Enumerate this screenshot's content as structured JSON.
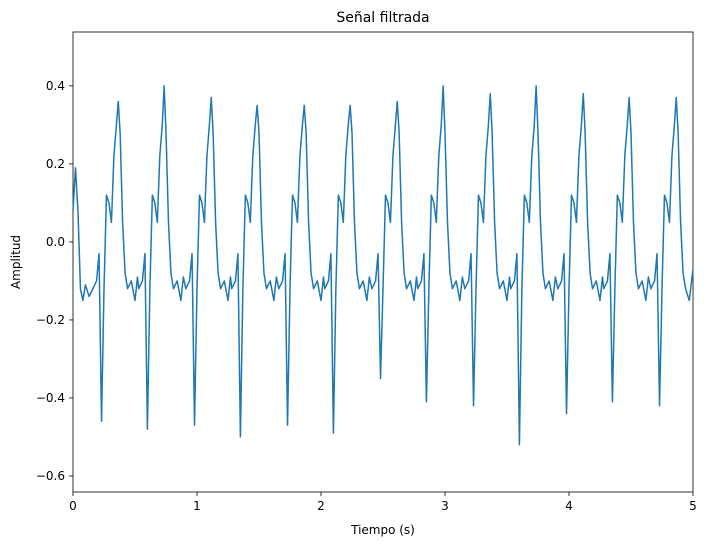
{
  "chart_data": {
    "type": "line",
    "title": "Señal filtrada",
    "x_label": "Tiempo (s)",
    "y_label": "Amplitud",
    "xlim": [
      0,
      5
    ],
    "ylim": [
      -0.641,
      0.538
    ],
    "xticks": [
      0,
      1,
      2,
      3,
      4,
      5
    ],
    "yticks": [
      {
        "value": -0.6,
        "label": "−0.6"
      },
      {
        "value": -0.4,
        "label": "−0.4"
      },
      {
        "value": -0.2,
        "label": "−0.2"
      },
      {
        "value": 0.0,
        "label": "0.0"
      },
      {
        "value": 0.2,
        "label": "0.2"
      },
      {
        "value": 0.4,
        "label": "0.4"
      }
    ],
    "x": [
      0,
      0.02,
      0.04,
      0.06,
      0.08,
      0.1,
      0.13,
      0.16,
      0.19,
      0.21,
      0.23,
      0.25,
      0.27,
      0.29,
      0.31,
      0.33,
      0.35,
      0.365,
      0.38,
      0.4,
      0.42,
      0.44,
      0.47,
      0.5,
      0.52,
      0.53,
      0.56,
      0.58,
      0.6,
      0.62,
      0.64,
      0.66,
      0.68,
      0.7,
      0.72,
      0.735,
      0.75,
      0.77,
      0.79,
      0.81,
      0.84,
      0.87,
      0.89,
      0.91,
      0.94,
      0.96,
      0.98,
      1.0,
      1.02,
      1.04,
      1.06,
      1.08,
      1.1,
      1.115,
      1.13,
      1.15,
      1.17,
      1.19,
      1.22,
      1.25,
      1.27,
      1.28,
      1.31,
      1.33,
      1.35,
      1.37,
      1.39,
      1.41,
      1.43,
      1.45,
      1.47,
      1.485,
      1.5,
      1.52,
      1.54,
      1.56,
      1.59,
      1.62,
      1.64,
      1.66,
      1.69,
      1.71,
      1.73,
      1.75,
      1.77,
      1.79,
      1.81,
      1.83,
      1.85,
      1.865,
      1.88,
      1.9,
      1.92,
      1.94,
      1.97,
      2.0,
      2.02,
      2.03,
      2.06,
      2.08,
      2.1,
      2.12,
      2.14,
      2.16,
      2.18,
      2.2,
      2.22,
      2.235,
      2.25,
      2.27,
      2.29,
      2.31,
      2.34,
      2.37,
      2.39,
      2.41,
      2.44,
      2.46,
      2.48,
      2.5,
      2.52,
      2.54,
      2.56,
      2.58,
      2.6,
      2.615,
      2.63,
      2.65,
      2.67,
      2.69,
      2.72,
      2.75,
      2.77,
      2.78,
      2.81,
      2.83,
      2.85,
      2.87,
      2.89,
      2.91,
      2.93,
      2.95,
      2.97,
      2.985,
      3.0,
      3.02,
      3.04,
      3.06,
      3.09,
      3.12,
      3.14,
      3.16,
      3.19,
      3.21,
      3.23,
      3.25,
      3.27,
      3.29,
      3.31,
      3.33,
      3.35,
      3.365,
      3.38,
      3.4,
      3.42,
      3.44,
      3.47,
      3.5,
      3.52,
      3.53,
      3.56,
      3.58,
      3.6,
      3.62,
      3.64,
      3.66,
      3.68,
      3.7,
      3.72,
      3.735,
      3.75,
      3.77,
      3.79,
      3.81,
      3.84,
      3.87,
      3.89,
      3.91,
      3.94,
      3.96,
      3.98,
      4.0,
      4.02,
      4.04,
      4.06,
      4.08,
      4.1,
      4.115,
      4.13,
      4.15,
      4.17,
      4.19,
      4.22,
      4.25,
      4.27,
      4.28,
      4.31,
      4.33,
      4.35,
      4.37,
      4.39,
      4.41,
      4.43,
      4.45,
      4.47,
      4.485,
      4.5,
      4.52,
      4.54,
      4.56,
      4.59,
      4.62,
      4.64,
      4.66,
      4.69,
      4.71,
      4.73,
      4.75,
      4.77,
      4.79,
      4.81,
      4.83,
      4.85,
      4.865,
      4.88,
      4.9,
      4.92,
      4.94,
      4.97,
      5.0
    ],
    "series": [
      {
        "color": "#1f77b4",
        "values": [
          0.08,
          0.19,
          0.08,
          -0.12,
          -0.15,
          -0.11,
          -0.14,
          -0.12,
          -0.1,
          -0.03,
          -0.46,
          -0.12,
          0.12,
          0.1,
          0.05,
          0.22,
          0.3,
          0.36,
          0.28,
          0.05,
          -0.08,
          -0.12,
          -0.1,
          -0.15,
          -0.09,
          -0.12,
          -0.1,
          -0.03,
          -0.48,
          -0.12,
          0.12,
          0.1,
          0.05,
          0.22,
          0.3,
          0.4,
          0.28,
          0.05,
          -0.08,
          -0.12,
          -0.1,
          -0.15,
          -0.09,
          -0.12,
          -0.1,
          -0.03,
          -0.47,
          -0.12,
          0.12,
          0.1,
          0.05,
          0.22,
          0.3,
          0.37,
          0.28,
          0.05,
          -0.08,
          -0.12,
          -0.1,
          -0.15,
          -0.09,
          -0.12,
          -0.1,
          -0.03,
          -0.5,
          -0.12,
          0.12,
          0.1,
          0.05,
          0.22,
          0.3,
          0.35,
          0.28,
          0.05,
          -0.08,
          -0.12,
          -0.1,
          -0.15,
          -0.09,
          -0.12,
          -0.1,
          -0.03,
          -0.47,
          -0.12,
          0.12,
          0.1,
          0.05,
          0.22,
          0.3,
          0.35,
          0.28,
          0.05,
          -0.08,
          -0.12,
          -0.1,
          -0.15,
          -0.09,
          -0.12,
          -0.1,
          -0.03,
          -0.49,
          -0.12,
          0.12,
          0.1,
          0.05,
          0.22,
          0.3,
          0.35,
          0.28,
          0.05,
          -0.08,
          -0.12,
          -0.1,
          -0.15,
          -0.09,
          -0.12,
          -0.1,
          -0.03,
          -0.35,
          -0.12,
          0.12,
          0.1,
          0.05,
          0.22,
          0.3,
          0.36,
          0.28,
          0.05,
          -0.08,
          -0.12,
          -0.1,
          -0.15,
          -0.09,
          -0.12,
          -0.1,
          -0.03,
          -0.41,
          -0.12,
          0.12,
          0.1,
          0.05,
          0.22,
          0.3,
          0.4,
          0.28,
          0.05,
          -0.08,
          -0.12,
          -0.1,
          -0.15,
          -0.09,
          -0.12,
          -0.1,
          -0.03,
          -0.42,
          -0.12,
          0.12,
          0.1,
          0.05,
          0.22,
          0.3,
          0.38,
          0.28,
          0.05,
          -0.08,
          -0.12,
          -0.1,
          -0.15,
          -0.09,
          -0.12,
          -0.1,
          -0.03,
          -0.52,
          -0.12,
          0.12,
          0.1,
          0.05,
          0.22,
          0.3,
          0.4,
          0.28,
          0.05,
          -0.08,
          -0.12,
          -0.1,
          -0.15,
          -0.09,
          -0.12,
          -0.1,
          -0.03,
          -0.44,
          -0.12,
          0.12,
          0.1,
          0.05,
          0.22,
          0.3,
          0.38,
          0.28,
          0.05,
          -0.08,
          -0.12,
          -0.1,
          -0.15,
          -0.09,
          -0.12,
          -0.1,
          -0.03,
          -0.41,
          -0.12,
          0.12,
          0.1,
          0.05,
          0.22,
          0.3,
          0.37,
          0.28,
          0.05,
          -0.08,
          -0.12,
          -0.1,
          -0.15,
          -0.09,
          -0.12,
          -0.1,
          -0.03,
          -0.42,
          -0.12,
          0.12,
          0.1,
          0.05,
          0.22,
          0.3,
          0.37,
          0.28,
          0.05,
          -0.08,
          -0.12,
          -0.15,
          -0.07
        ]
      }
    ]
  }
}
